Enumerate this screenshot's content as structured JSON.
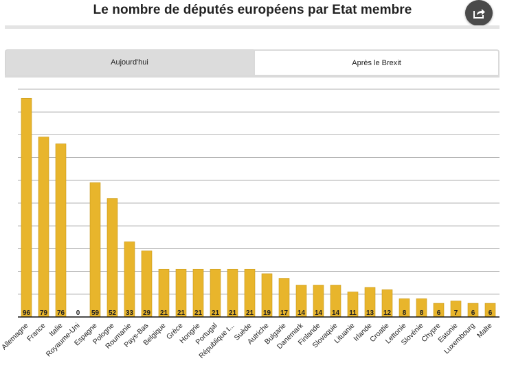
{
  "title": "Le nombre de députés européens par Etat membre",
  "share_icon": "share-icon",
  "tabs": [
    {
      "label": "Aujourd'hui",
      "active": false
    },
    {
      "label": "Après le Brexit",
      "active": true
    }
  ],
  "colors": {
    "bar": "#e8b52c",
    "bar_stroke": "#c99a1b",
    "grid": "#999999",
    "axis": "#111111"
  },
  "chart_data": {
    "type": "bar",
    "categories": [
      "Allemagne",
      "France",
      "Italie",
      "Royaume-Uni",
      "Espagne",
      "Pologne",
      "Roumanie",
      "Pays-Bas",
      "Belgique",
      "Grèce",
      "Hongrie",
      "Portugal",
      "République t...",
      "Suède",
      "Autriche",
      "Bulgarie",
      "Danemark",
      "Finlande",
      "Slovaquie",
      "Lituanie",
      "Irlande",
      "Croatie",
      "Lettonie",
      "Slovénie",
      "Chypre",
      "Estonie",
      "Luxembourg",
      "Malte"
    ],
    "values": [
      96,
      79,
      76,
      0,
      59,
      52,
      33,
      29,
      21,
      21,
      21,
      21,
      21,
      21,
      19,
      17,
      14,
      14,
      14,
      11,
      13,
      12,
      8,
      8,
      6,
      7,
      6,
      6
    ],
    "ylim": [
      0,
      100
    ],
    "grid": true,
    "xlabel": "",
    "ylabel": ""
  }
}
